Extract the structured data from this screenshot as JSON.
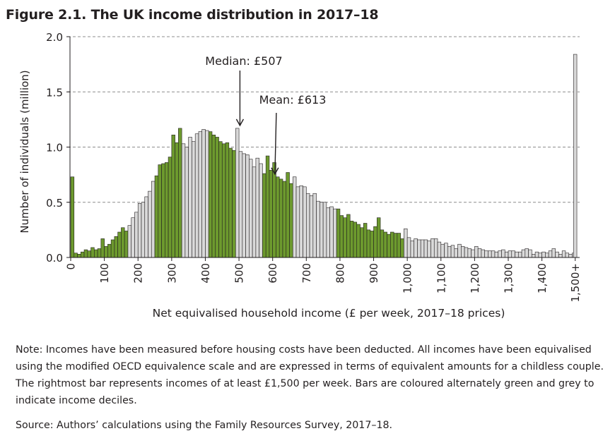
{
  "figure_title": "Figure 2.1. The UK income distribution in 2017–18",
  "note": "Note: Incomes have been measured before housing costs have been deducted. All incomes have been equivalised using the modified OECD equivalence scale and are expressed in terms of equivalent amounts for a childless couple. The rightmost bar represents incomes of at least £1,500 per week. Bars are coloured alternately green and grey to indicate income deciles.",
  "source": "Source: Authors’ calculations using the Family Resources Survey, 2017–18.",
  "colors": {
    "green": "#6d9a2e",
    "grey": "#d9d9d9",
    "outline": "#231f20"
  },
  "chart_data": {
    "type": "bar",
    "title": "Figure 2.1. The UK income distribution in 2017–18",
    "xlabel": "Net equivalised household income (£ per week, 2017–18 prices)",
    "ylabel": "Number of individuals (million)",
    "ylim": [
      0,
      2.0
    ],
    "yticks": [
      "0.0",
      "0.5",
      "1.0",
      "1.5",
      "2.0"
    ],
    "ytick_values": [
      0,
      0.5,
      1.0,
      1.5,
      2.0
    ],
    "xticks": [
      "0",
      "100",
      "200",
      "300",
      "400",
      "500",
      "600",
      "700",
      "800",
      "900",
      "1,000",
      "1,100",
      "1,200",
      "1,300",
      "1,400",
      "1,500+"
    ],
    "xtick_values": [
      0,
      100,
      200,
      300,
      400,
      500,
      600,
      700,
      800,
      900,
      1000,
      1100,
      1200,
      1300,
      1400,
      1500
    ],
    "grid": "horizontal dashed",
    "bin_width": 10,
    "x_start": 0,
    "values": [
      0.73,
      0.04,
      0.03,
      0.05,
      0.07,
      0.06,
      0.09,
      0.07,
      0.08,
      0.17,
      0.1,
      0.12,
      0.16,
      0.19,
      0.23,
      0.27,
      0.24,
      0.29,
      0.36,
      0.41,
      0.49,
      0.5,
      0.55,
      0.6,
      0.69,
      0.74,
      0.84,
      0.85,
      0.86,
      0.91,
      1.11,
      1.04,
      1.17,
      1.03,
      1.0,
      1.09,
      1.05,
      1.12,
      1.14,
      1.16,
      1.15,
      1.14,
      1.11,
      1.09,
      1.05,
      1.03,
      1.04,
      0.99,
      0.97,
      1.17,
      0.96,
      0.94,
      0.93,
      0.89,
      0.82,
      0.9,
      0.85,
      0.76,
      0.92,
      0.79,
      0.86,
      0.73,
      0.71,
      0.69,
      0.77,
      0.67,
      0.73,
      0.64,
      0.65,
      0.64,
      0.58,
      0.56,
      0.58,
      0.51,
      0.5,
      0.5,
      0.45,
      0.46,
      0.44,
      0.44,
      0.38,
      0.36,
      0.39,
      0.33,
      0.32,
      0.3,
      0.27,
      0.31,
      0.25,
      0.24,
      0.28,
      0.36,
      0.25,
      0.23,
      0.21,
      0.23,
      0.22,
      0.22,
      0.17,
      0.26,
      0.18,
      0.15,
      0.17,
      0.16,
      0.16,
      0.16,
      0.15,
      0.17,
      0.17,
      0.14,
      0.12,
      0.13,
      0.1,
      0.11,
      0.08,
      0.12,
      0.1,
      0.09,
      0.08,
      0.07,
      0.1,
      0.08,
      0.07,
      0.06,
      0.06,
      0.06,
      0.05,
      0.06,
      0.07,
      0.05,
      0.06,
      0.06,
      0.05,
      0.05,
      0.07,
      0.08,
      0.07,
      0.03,
      0.05,
      0.04,
      0.05,
      0.04,
      0.06,
      0.08,
      0.05,
      0.03,
      0.06,
      0.04,
      0.03,
      0.04
    ],
    "open_bin": {
      "label": "1,500+",
      "value": 1.84
    },
    "decile_starts": [
      0,
      17,
      25,
      33,
      41,
      49,
      57,
      66,
      79,
      99
    ],
    "annotations": [
      {
        "label": "Median: £507",
        "x": 507,
        "y": 1.17
      },
      {
        "label": "Mean: £613",
        "x": 613,
        "y": 0.73
      }
    ]
  }
}
